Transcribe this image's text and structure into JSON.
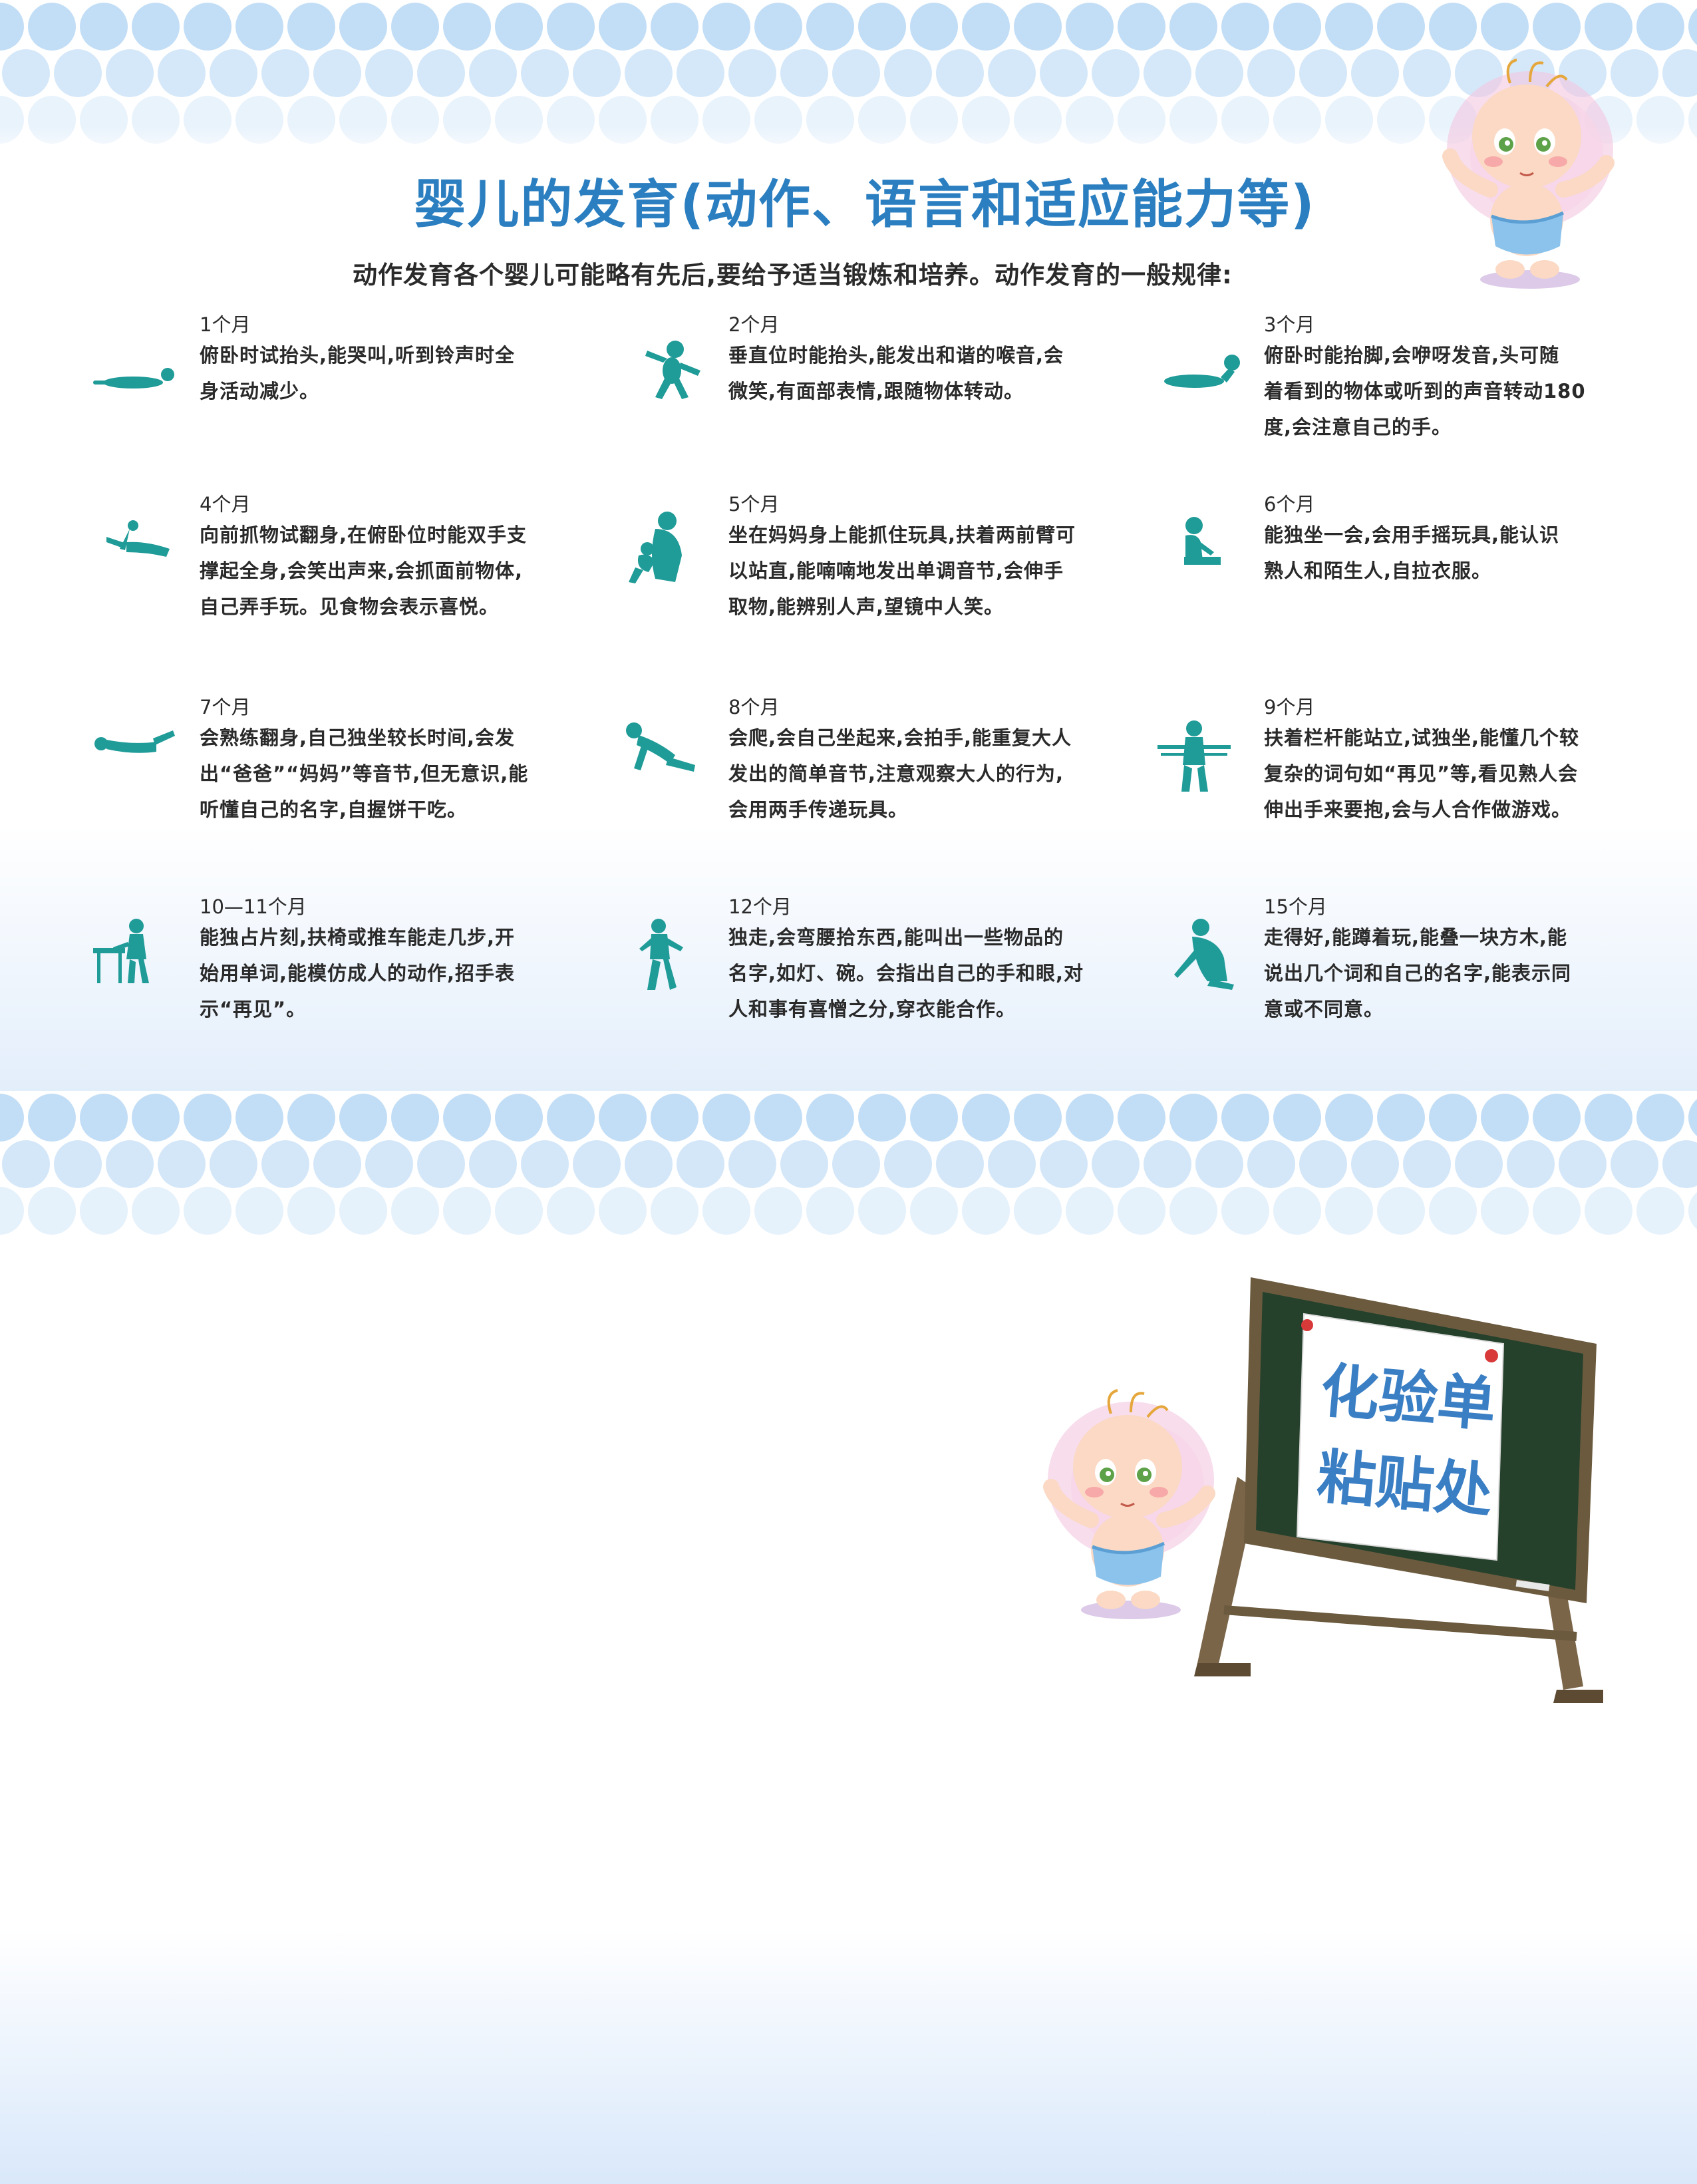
{
  "title": "婴儿的发育(动作、语言和适应能力等)",
  "subtitle": "动作发育各个婴儿可能略有先后,要给予适当锻炼和培养。动作发育的一般规律:",
  "stages": [
    {
      "month": "1个月",
      "desc": [
        "俯卧时试抬头,能哭叫,听到铃声时全",
        "身活动减少。"
      ],
      "icon": "baby-lying-prone-icon"
    },
    {
      "month": "2个月",
      "desc": [
        "垂直位时能抬头,能发出和谐的喉音,会",
        "微笑,有面部表情,跟随物体转动。"
      ],
      "icon": "baby-held-upright-icon"
    },
    {
      "month": "3个月",
      "desc": [
        "俯卧时能抬脚,会咿呀发音,头可随",
        "着看到的物体或听到的声音转动180",
        "度,会注意自己的手。"
      ],
      "icon": "baby-raising-head-icon"
    },
    {
      "month": "4个月",
      "desc": [
        "向前抓物试翻身,在俯卧位时能双手支",
        "撑起全身,会笑出声来,会抓面前物体,",
        "自己弄手玩。见食物会表示喜悦。"
      ],
      "icon": "baby-reaching-icon"
    },
    {
      "month": "5个月",
      "desc": [
        "坐在妈妈身上能抓住玩具,扶着两前臂可",
        "以站直,能喃喃地发出单调音节,会伸手",
        "取物,能辨别人声,望镜中人笑。"
      ],
      "icon": "mother-holding-baby-icon"
    },
    {
      "month": "6个月",
      "desc": [
        "能独坐一会,会用手摇玩具,能认识",
        "熟人和陌生人,自拉衣服。"
      ],
      "icon": "baby-sitting-icon"
    },
    {
      "month": "7个月",
      "desc": [
        "会熟练翻身,自己独坐较长时间,会发",
        "出“爸爸”“妈妈”等音节,但无意识,能",
        "听懂自己的名字,自握饼干吃。"
      ],
      "icon": "baby-rolling-icon"
    },
    {
      "month": "8个月",
      "desc": [
        "会爬,会自己坐起来,会拍手,能重复大人",
        "发出的简单音节,注意观察大人的行为,",
        "会用两手传递玩具。"
      ],
      "icon": "baby-crawling-icon"
    },
    {
      "month": "9个月",
      "desc": [
        "扶着栏杆能站立,试独坐,能懂几个较",
        "复杂的词句如“再见”等,看见熟人会",
        "伸出手来要抱,会与人合作做游戏。"
      ],
      "icon": "baby-standing-rail-icon"
    },
    {
      "month": "10—11个月",
      "desc": [
        "能独占片刻,扶椅或推车能走几步,开",
        "始用单词,能模仿成人的动作,招手表",
        "示“再见”。"
      ],
      "icon": "baby-pushing-chair-icon"
    },
    {
      "month": "12个月",
      "desc": [
        "独走,会弯腰拾东西,能叫出一些物品的",
        "名字,如灯、碗。会指出自己的手和眼,对",
        "人和事有喜憎之分,穿衣能合作。"
      ],
      "icon": "toddler-walking-icon"
    },
    {
      "month": "15个月",
      "desc": [
        "走得好,能蹲着玩,能叠一块方木,能",
        "说出几个词和自己的名字,能表示同",
        "意或不同意。"
      ],
      "icon": "toddler-squatting-icon"
    }
  ],
  "board": {
    "line1": "化验单",
    "line2": "粘贴处"
  },
  "colors": {
    "title": "#2b7fc0",
    "icon": "#1f9b98",
    "dots": "#bfdcf6",
    "board_frame": "#6b5a3e",
    "board_green": "#25412c"
  }
}
